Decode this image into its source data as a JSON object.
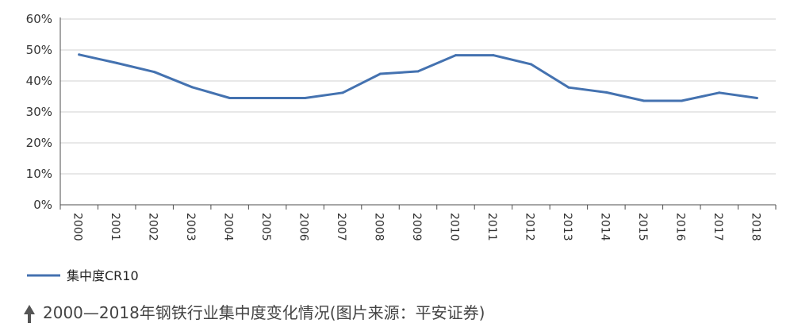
{
  "chart_data": {
    "type": "line",
    "x": [
      "2000",
      "2001",
      "2002",
      "2003",
      "2004",
      "2005",
      "2006",
      "2007",
      "2008",
      "2009",
      "2010",
      "2011",
      "2012",
      "2013",
      "2014",
      "2015",
      "2016",
      "2017",
      "2018"
    ],
    "series": [
      {
        "name": "集中度CR10",
        "values": [
          48.5,
          45.8,
          42.9,
          38.0,
          34.5,
          34.5,
          34.5,
          36.2,
          42.3,
          43.1,
          48.3,
          48.3,
          45.4,
          37.9,
          36.3,
          33.6,
          33.6,
          36.2,
          34.5
        ],
        "color": "#4472b0"
      }
    ],
    "yticks": [
      "0%",
      "10%",
      "20%",
      "30%",
      "40%",
      "50%",
      "60%"
    ],
    "ylim": [
      0,
      60
    ],
    "y_unit": "%",
    "grid": true,
    "legend_position": "bottom-left",
    "xlabel": "",
    "ylabel": "",
    "caption": "2000—2018年钢铁行业集中度变化情况(图片来源：平安证券)"
  },
  "colors": {
    "line": "#4472b0",
    "grid": "#d9d9d9",
    "axis": "#4d4d4d",
    "caption_icon": "#555555"
  },
  "caption_icon": "up-arrow-icon"
}
